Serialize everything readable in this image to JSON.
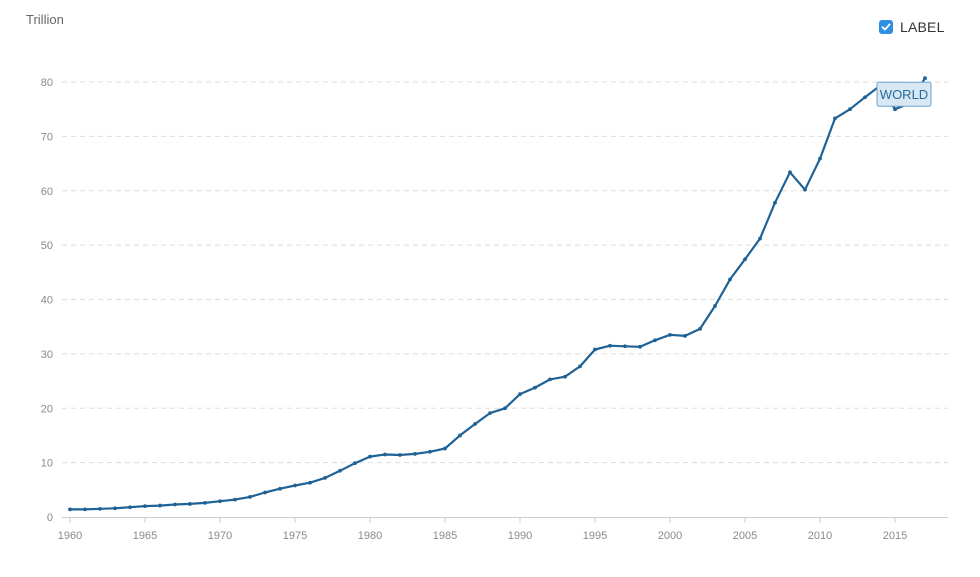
{
  "header": {
    "unit_label": "Trillion",
    "label_toggle": {
      "text": "LABEL",
      "checked": true,
      "check_icon": "checkmark-icon"
    }
  },
  "colors": {
    "line": "#1f6296",
    "grid": "#dddddd",
    "axis": "#cccccc",
    "tick_text": "#8a8a8a",
    "checkbox": "#2f8fe0",
    "tag_fill": "#d7e7f4",
    "tag_stroke": "#6fa3cc",
    "tag_text": "#2a6a9a"
  },
  "chart_data": {
    "type": "line",
    "title": "",
    "xlabel": "",
    "ylabel": "Trillion",
    "xlim": [
      1960,
      2017
    ],
    "ylim": [
      0,
      80
    ],
    "yticks": [
      0,
      10,
      20,
      30,
      40,
      50,
      60,
      70,
      80
    ],
    "xticks": [
      1960,
      1965,
      1970,
      1975,
      1980,
      1985,
      1990,
      1995,
      2000,
      2005,
      2010,
      2015
    ],
    "grid": true,
    "legend": "top-right",
    "series": [
      {
        "name": "WORLD",
        "x": [
          1960,
          1961,
          1962,
          1963,
          1964,
          1965,
          1966,
          1967,
          1968,
          1969,
          1970,
          1971,
          1972,
          1973,
          1974,
          1975,
          1976,
          1977,
          1978,
          1979,
          1980,
          1981,
          1982,
          1983,
          1984,
          1985,
          1986,
          1987,
          1988,
          1989,
          1990,
          1991,
          1992,
          1993,
          1994,
          1995,
          1996,
          1997,
          1998,
          1999,
          2000,
          2001,
          2002,
          2003,
          2004,
          2005,
          2006,
          2007,
          2008,
          2009,
          2010,
          2011,
          2012,
          2013,
          2014,
          2015,
          2016,
          2017
        ],
        "y": [
          1.4,
          1.4,
          1.5,
          1.6,
          1.8,
          2.0,
          2.1,
          2.3,
          2.4,
          2.6,
          2.9,
          3.2,
          3.7,
          4.5,
          5.2,
          5.8,
          6.3,
          7.2,
          8.5,
          9.9,
          11.1,
          11.5,
          11.4,
          11.6,
          12.0,
          12.6,
          15.0,
          17.1,
          19.1,
          20.0,
          22.6,
          23.8,
          25.3,
          25.8,
          27.7,
          30.8,
          31.5,
          31.4,
          31.3,
          32.5,
          33.5,
          33.3,
          34.6,
          38.8,
          43.7,
          47.4,
          51.2,
          57.8,
          63.4,
          60.2,
          65.9,
          73.3,
          75.0,
          77.2,
          79.3,
          75.0,
          76.1,
          80.7
        ]
      }
    ]
  }
}
